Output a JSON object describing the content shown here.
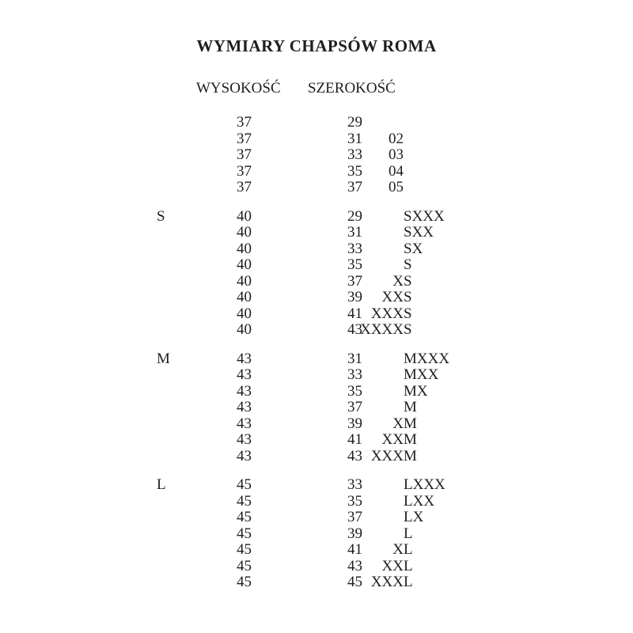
{
  "page": {
    "title": "WYMIARY CHAPSÓW ROMA",
    "background_color": "#ffffff",
    "text_color": "#1e1e1e"
  },
  "table": {
    "columns": {
      "height_label": "WYSOKOŚĆ",
      "width_label": "SZEROKOŚĆ"
    },
    "groups": [
      {
        "label": "",
        "rows": [
          {
            "height": "37",
            "width": "29",
            "code": ""
          },
          {
            "height": "37",
            "width": "31",
            "code": "02"
          },
          {
            "height": "37",
            "width": "33",
            "code": "03"
          },
          {
            "height": "37",
            "width": "35",
            "code": "04"
          },
          {
            "height": "37",
            "width": "37",
            "code": "05"
          }
        ]
      },
      {
        "label": "S",
        "rows": [
          {
            "height": "40",
            "width": "29",
            "code": "SXXX"
          },
          {
            "height": "40",
            "width": "31",
            "code": "SXX"
          },
          {
            "height": "40",
            "width": "33",
            "code": "SX"
          },
          {
            "height": "40",
            "width": "35",
            "code": "S"
          },
          {
            "height": "40",
            "width": "37",
            "code": "XS"
          },
          {
            "height": "40",
            "width": "39",
            "code": "XXS"
          },
          {
            "height": "40",
            "width": "41",
            "code": "XXXS"
          },
          {
            "height": "40",
            "width": "43",
            "code": "XXXXS"
          }
        ]
      },
      {
        "label": "M",
        "rows": [
          {
            "height": "43",
            "width": "31",
            "code": "MXXX"
          },
          {
            "height": "43",
            "width": "33",
            "code": "MXX"
          },
          {
            "height": "43",
            "width": "35",
            "code": "MX"
          },
          {
            "height": "43",
            "width": "37",
            "code": "M"
          },
          {
            "height": "43",
            "width": "39",
            "code": "XM"
          },
          {
            "height": "43",
            "width": "41",
            "code": "XXM"
          },
          {
            "height": "43",
            "width": "43",
            "code": "XXXM"
          }
        ]
      },
      {
        "label": "L",
        "rows": [
          {
            "height": "45",
            "width": "33",
            "code": "LXXX"
          },
          {
            "height": "45",
            "width": "35",
            "code": "LXX"
          },
          {
            "height": "45",
            "width": "37",
            "code": "LX"
          },
          {
            "height": "45",
            "width": "39",
            "code": "L"
          },
          {
            "height": "45",
            "width": "41",
            "code": "XL"
          },
          {
            "height": "45",
            "width": "43",
            "code": "XXL"
          },
          {
            "height": "45",
            "width": "45",
            "code": "XXXL"
          }
        ]
      }
    ]
  }
}
